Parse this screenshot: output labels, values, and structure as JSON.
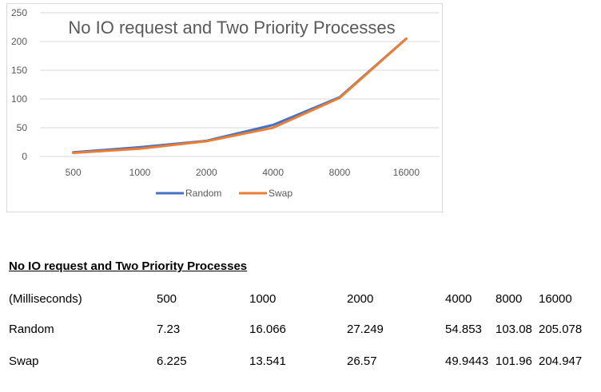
{
  "chart_data": {
    "type": "line",
    "title": "No IO request and Two Priority Processes",
    "categories": [
      "500",
      "1000",
      "2000",
      "4000",
      "8000",
      "16000"
    ],
    "y_ticks": [
      "250",
      "200",
      "150",
      "100",
      "50",
      "0"
    ],
    "ylim": [
      0,
      250
    ],
    "grid": true,
    "legend_position": "bottom",
    "series": [
      {
        "name": "Random",
        "color": "#4472c4",
        "values": [
          7.23,
          16.066,
          27.249,
          54.853,
          103.08,
          205.078
        ]
      },
      {
        "name": "Swap",
        "color": "#ed7d31",
        "values": [
          6.225,
          13.541,
          26.57,
          49.9443,
          101.96,
          204.947
        ]
      }
    ]
  },
  "table": {
    "title": "No IO request and Two Priority Processes",
    "header": [
      "(Milliseconds)",
      "500",
      "1000",
      "2000",
      "4000",
      "8000",
      "16000"
    ],
    "rows": [
      [
        "Random",
        "7.23",
        "16.066",
        "27.249",
        "54.853",
        "103.08",
        "205.078"
      ],
      [
        "Swap",
        "6.225",
        "13.541",
        "26.57",
        "49.9443",
        "101.96",
        "204.947"
      ]
    ]
  }
}
